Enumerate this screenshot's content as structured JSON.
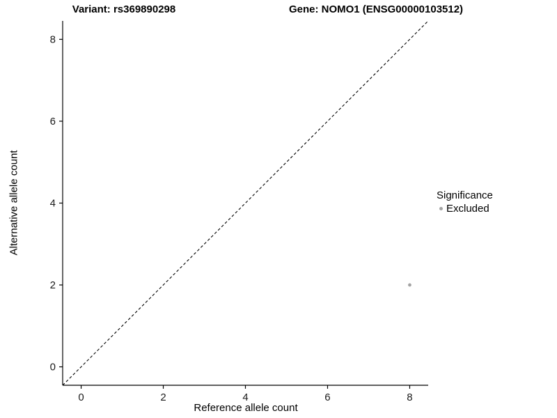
{
  "chart_data": {
    "type": "scatter",
    "title_left": "Variant: rs369890298",
    "title_right": "Gene: NOMO1 (ENSG00000103512)",
    "xlabel": "Reference allele count",
    "ylabel": "Alternative allele count",
    "xlim": [
      -0.45,
      8.45
    ],
    "ylim": [
      -0.45,
      8.45
    ],
    "xticks": [
      0,
      2,
      4,
      6,
      8
    ],
    "yticks": [
      0,
      2,
      4,
      6,
      8
    ],
    "grid": false,
    "axis_color": "#000000",
    "tick_label_color": "#1a1a1a",
    "identity_line": {
      "style": "dashed",
      "color": "#000000"
    },
    "legend_title": "Significance",
    "legend_position": "right",
    "series": [
      {
        "name": "Excluded",
        "color": "#a3a3a3",
        "point_radius": 2.4,
        "points": [
          {
            "x": 8,
            "y": 2
          }
        ]
      }
    ]
  }
}
